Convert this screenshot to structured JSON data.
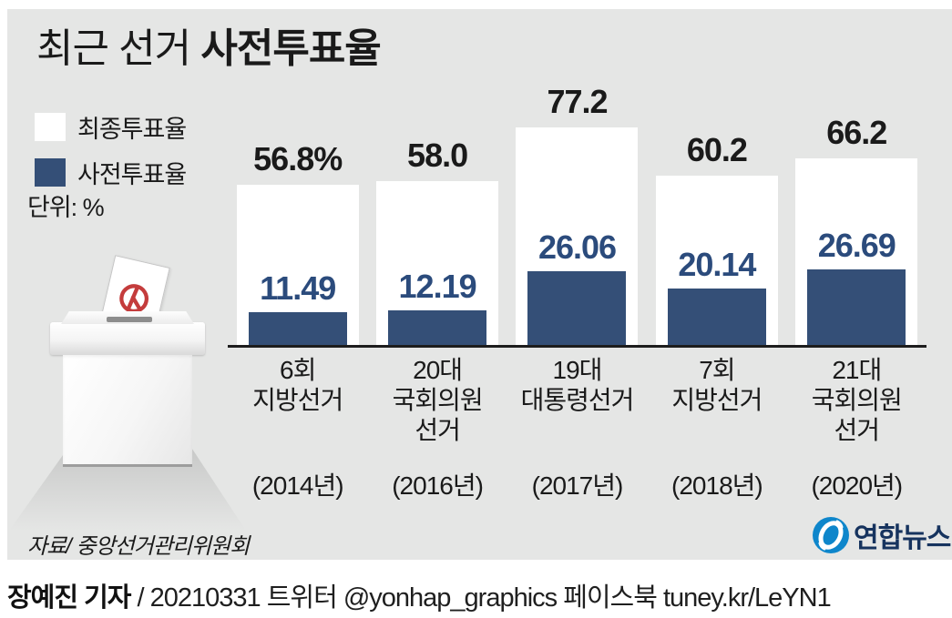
{
  "title": {
    "prefix": "최근 선거 ",
    "emphasis": "사전투표율"
  },
  "legend": {
    "final_label": "최종투표율",
    "early_label": "사전투표율",
    "unit_note": "단위: %"
  },
  "chart_data": {
    "type": "bar",
    "title": "최근 선거 사전투표율",
    "unit": "%",
    "ylim": [
      0,
      80
    ],
    "grid": false,
    "legend_position": "top-left",
    "series": [
      {
        "name": "최종투표율",
        "color": "#ffffff",
        "values": [
          56.8,
          58.0,
          77.2,
          60.2,
          66.2
        ]
      },
      {
        "name": "사전투표율",
        "color": "#344f77",
        "values": [
          11.49,
          12.19,
          26.06,
          20.14,
          26.69
        ]
      }
    ],
    "groups": [
      {
        "name_lines": [
          "6회",
          "지방선거"
        ],
        "year": "(2014년)",
        "final": 56.8,
        "final_label": "56.8%",
        "early": 11.49,
        "early_label": "11.49"
      },
      {
        "name_lines": [
          "20대",
          "국회의원",
          "선거"
        ],
        "year": "(2016년)",
        "final": 58.0,
        "final_label": "58.0",
        "early": 12.19,
        "early_label": "12.19"
      },
      {
        "name_lines": [
          "19대",
          "대통령선거"
        ],
        "year": "(2017년)",
        "final": 77.2,
        "final_label": "77.2",
        "early": 26.06,
        "early_label": "26.06"
      },
      {
        "name_lines": [
          "7회",
          "지방선거"
        ],
        "year": "(2018년)",
        "final": 60.2,
        "final_label": "60.2",
        "early": 20.14,
        "early_label": "20.14"
      },
      {
        "name_lines": [
          "21대",
          "국회의원",
          "선거"
        ],
        "year": "(2020년)",
        "final": 66.2,
        "final_label": "66.2",
        "early": 26.69,
        "early_label": "26.69"
      }
    ]
  },
  "colors": {
    "panel_bg": "#e5e6e5",
    "bar_final": "#ffffff",
    "bar_early": "#344f77",
    "early_text": "#2b4b7c",
    "baseline": "#1d1d1d",
    "stamp_red": "#c43c3c",
    "logo_blue": "#0e86cb",
    "logo_navy": "#16335e"
  },
  "illustration": {
    "name": "ballot-box-with-ballot"
  },
  "source_note": "자료/ 중앙선거관리위원회",
  "logo": {
    "text": "연합뉴스"
  },
  "footer": {
    "byline": "장예진 기자",
    "rest": " / 20210331 트위터 @yonhap_graphics  페이스북 tuney.kr/LeYN1"
  }
}
